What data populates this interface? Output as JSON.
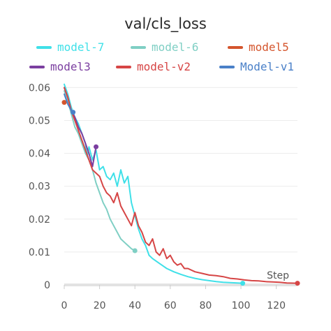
{
  "chart_data": {
    "type": "line",
    "title": "val/cls_loss",
    "xlabel": "Step",
    "ylabel": "",
    "xlim": [
      0,
      132
    ],
    "ylim": [
      0,
      0.062
    ],
    "xticks": [
      0,
      20,
      40,
      60,
      80,
      100,
      120
    ],
    "yticks": [
      0,
      0.01,
      0.02,
      0.03,
      0.04,
      0.05,
      0.06
    ],
    "ytick_labels": [
      "0",
      "0.01",
      "0.02",
      "0.03",
      "0.04",
      "0.05",
      "0.06"
    ],
    "grid": true,
    "legend_position": "top",
    "series": [
      {
        "name": "model-7",
        "color": "#3fe0e8",
        "x": [
          0,
          2,
          4,
          6,
          8,
          10,
          12,
          13,
          14,
          16,
          18,
          20,
          22,
          24,
          26,
          28,
          30,
          32,
          34,
          36,
          38,
          40,
          42,
          44,
          46,
          48,
          50,
          54,
          58,
          62,
          66,
          70,
          74,
          78,
          82,
          86,
          90,
          94,
          98,
          101
        ],
        "y": [
          0.061,
          0.058,
          0.054,
          0.051,
          0.049,
          0.046,
          0.043,
          0.039,
          0.042,
          0.038,
          0.041,
          0.035,
          0.036,
          0.033,
          0.032,
          0.034,
          0.03,
          0.035,
          0.031,
          0.033,
          0.025,
          0.021,
          0.017,
          0.014,
          0.012,
          0.009,
          0.008,
          0.0065,
          0.005,
          0.004,
          0.0032,
          0.0025,
          0.002,
          0.0016,
          0.0013,
          0.001,
          0.0008,
          0.0007,
          0.0006,
          0.0005
        ]
      },
      {
        "name": "model-6",
        "color": "#7fcfc4",
        "x": [
          0,
          2,
          4,
          6,
          8,
          10,
          12,
          14,
          16,
          18,
          20,
          22,
          24,
          26,
          28,
          30,
          32,
          34,
          36,
          38,
          40
        ],
        "y": [
          0.059,
          0.056,
          0.052,
          0.048,
          0.046,
          0.043,
          0.04,
          0.038,
          0.035,
          0.031,
          0.028,
          0.025,
          0.023,
          0.02,
          0.018,
          0.016,
          0.014,
          0.013,
          0.012,
          0.011,
          0.0104
        ]
      },
      {
        "name": "model5",
        "color": "#d4552d",
        "x": [
          0
        ],
        "y": [
          0.0555
        ]
      },
      {
        "name": "model3",
        "color": "#7b3fa0",
        "x": [
          0,
          2,
          4,
          6,
          8,
          10,
          12,
          14,
          16,
          17,
          18
        ],
        "y": [
          0.06,
          0.057,
          0.053,
          0.051,
          0.048,
          0.046,
          0.043,
          0.04,
          0.036,
          0.039,
          0.042
        ]
      },
      {
        "name": "model-v2",
        "color": "#d64545",
        "x": [
          0,
          2,
          4,
          6,
          8,
          10,
          12,
          14,
          16,
          18,
          20,
          22,
          24,
          26,
          28,
          30,
          32,
          34,
          36,
          38,
          40,
          42,
          44,
          46,
          48,
          50,
          52,
          54,
          56,
          58,
          60,
          62,
          64,
          66,
          68,
          70,
          74,
          78,
          82,
          86,
          90,
          94,
          98,
          102,
          106,
          110,
          114,
          118,
          122,
          126,
          132
        ],
        "y": [
          0.06,
          0.057,
          0.053,
          0.05,
          0.047,
          0.044,
          0.041,
          0.038,
          0.035,
          0.034,
          0.033,
          0.03,
          0.028,
          0.027,
          0.025,
          0.028,
          0.024,
          0.022,
          0.02,
          0.018,
          0.022,
          0.018,
          0.016,
          0.013,
          0.012,
          0.014,
          0.01,
          0.009,
          0.011,
          0.008,
          0.009,
          0.007,
          0.006,
          0.0065,
          0.005,
          0.005,
          0.004,
          0.0035,
          0.003,
          0.0028,
          0.0025,
          0.002,
          0.0018,
          0.0015,
          0.0013,
          0.0012,
          0.001,
          0.0009,
          0.0008,
          0.0006,
          0.0005
        ]
      },
      {
        "name": "Model-v1",
        "color": "#4a80c8",
        "x": [
          0,
          2,
          3,
          4,
          5
        ],
        "y": [
          0.058,
          0.055,
          0.054,
          0.053,
          0.0525
        ]
      }
    ]
  }
}
